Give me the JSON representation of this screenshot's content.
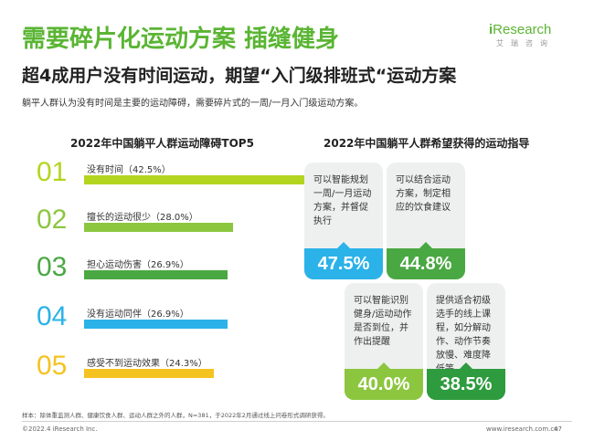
{
  "title": "需要碎片化运动方案 插缝健身",
  "logo": {
    "prefix": "i",
    "name": "Research",
    "cn": "艾瑞咨询"
  },
  "subtitle": "超4成用户没有时间运动，期望“入门级排班式“运动方案",
  "description": "躺平人群认为没有时间是主要的运动障碍，需要碎片式的一周/一月入门级运动方案。",
  "left_section": {
    "title": "2022年中国躺平人群运动障碍TOP5",
    "items": [
      {
        "rank": "01",
        "label": "没有时间（42.5%）",
        "value": 42.5,
        "color": "#b3d51f"
      },
      {
        "rank": "02",
        "label": "擅长的运动很少（28.0%）",
        "value": 28.0,
        "color": "#8cc63f"
      },
      {
        "rank": "03",
        "label": "担心运动伤害（26.9%）",
        "value": 26.9,
        "color": "#4aa843"
      },
      {
        "rank": "04",
        "label": "没有运动同伴（26.9%）",
        "value": 26.9,
        "color": "#2bb2e8"
      },
      {
        "rank": "05",
        "label": "感受不到运动效果（24.3%）",
        "value": 24.3,
        "color": "#f5c320"
      }
    ]
  },
  "right_section": {
    "title": "2022年中国躺平人群希望获得的运动指导",
    "cards": [
      {
        "text": "可以智能规划一周/一月运动方案，并督促执行",
        "pct": "47.5%",
        "color": "#2bb2e8"
      },
      {
        "text": "可以结合运动方案，制定相应的饮食建议",
        "pct": "44.8%",
        "color": "#4aa843"
      },
      {
        "text": "可以智能识别健身/运动动作是否到位，并作出提醒",
        "pct": "40.0%",
        "color": "#8cc63f"
      },
      {
        "text": "提供适合初级选手的线上课程，如分解动作、动作节奏放慢、难度降低等",
        "pct": "38.5%",
        "color": "#2e9b3e"
      }
    ]
  },
  "footnote": "样本：除体重监测人群、健康饮食人群、运动人群之外的人群，N=381，于2022年2月通过线上问卷形式调研获得。",
  "copyright": "©2022.4 iResearch Inc.",
  "website": "www.iresearch.com.cn",
  "page_number": "47"
}
